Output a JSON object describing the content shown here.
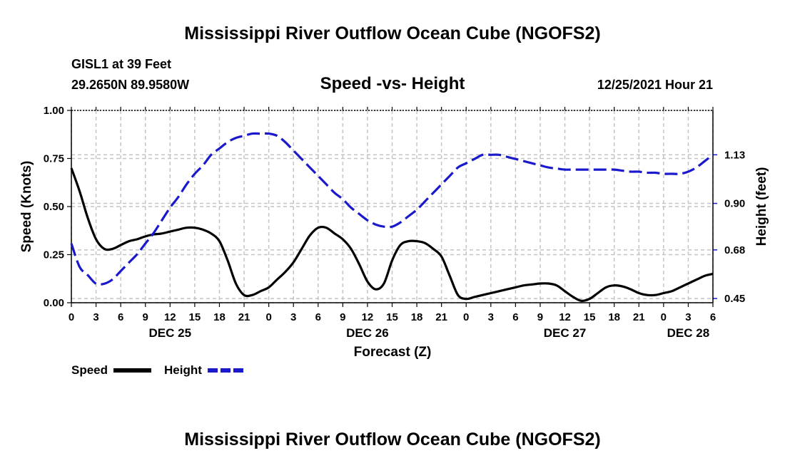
{
  "header": {
    "title": "Mississippi River Outflow Ocean Cube (NGOFS2)",
    "station": "GISL1 at 39 Feet",
    "coords": "29.2650N  89.9580W",
    "chart_title": "Speed -vs- Height",
    "datetime": "12/25/2021 Hour 21"
  },
  "footer": {
    "title": "Mississippi River Outflow Ocean Cube (NGOFS2)"
  },
  "chart_data": {
    "type": "line",
    "title": "Speed -vs- Height",
    "xlabel": "Forecast (Z)",
    "ylabel": "Speed (Knots)",
    "y2label": "Height (feet)",
    "hour_ticks": [
      "0",
      "3",
      "6",
      "9",
      "12",
      "15",
      "18",
      "21",
      "0",
      "3",
      "6",
      "9",
      "12",
      "15",
      "18",
      "21",
      "0",
      "3",
      "6",
      "9",
      "12",
      "15",
      "18",
      "21",
      "0",
      "3",
      "6"
    ],
    "day_labels": [
      {
        "label": "DEC 25",
        "hour": 12
      },
      {
        "label": "DEC 26",
        "hour": 36
      },
      {
        "label": "DEC 27",
        "hour": 60
      },
      {
        "label": "DEC 28",
        "hour": 75
      }
    ],
    "xlim": [
      0,
      78
    ],
    "ylim": [
      0,
      1
    ],
    "y_ticks": [
      "0.00",
      "0.25",
      "0.50",
      "0.75",
      "1.00"
    ],
    "y2lim": [
      0.43,
      1.34
    ],
    "y2_ticks": [
      "0.45",
      "0.68",
      "0.90",
      "1.13"
    ],
    "legend": [
      {
        "name": "Speed",
        "color": "#000000",
        "style": "solid"
      },
      {
        "name": "Height",
        "color": "#1a1acc",
        "style": "dashed"
      }
    ],
    "series": [
      {
        "name": "Speed",
        "axis": "left",
        "color": "#000000",
        "x": [
          0,
          1,
          2,
          3,
          4,
          5,
          6,
          7,
          8,
          9,
          10,
          11,
          12,
          13,
          14,
          15,
          16,
          17,
          18,
          19,
          20,
          21,
          22,
          23,
          24,
          25,
          26,
          27,
          28,
          29,
          30,
          31,
          32,
          33,
          34,
          35,
          36,
          37,
          38,
          39,
          40,
          41,
          42,
          43,
          44,
          45,
          46,
          47,
          48,
          49,
          50,
          51,
          52,
          53,
          54,
          55,
          56,
          57,
          58,
          59,
          60,
          61,
          62,
          63,
          64,
          65,
          66,
          67,
          68,
          69,
          70,
          71,
          72,
          73,
          74,
          75,
          76,
          77,
          78
        ],
        "values": [
          0.7,
          0.58,
          0.44,
          0.33,
          0.28,
          0.28,
          0.3,
          0.32,
          0.33,
          0.345,
          0.355,
          0.36,
          0.37,
          0.38,
          0.39,
          0.39,
          0.38,
          0.36,
          0.32,
          0.22,
          0.1,
          0.04,
          0.04,
          0.06,
          0.08,
          0.12,
          0.16,
          0.21,
          0.28,
          0.35,
          0.39,
          0.39,
          0.36,
          0.33,
          0.28,
          0.2,
          0.11,
          0.07,
          0.1,
          0.22,
          0.3,
          0.32,
          0.32,
          0.31,
          0.28,
          0.24,
          0.14,
          0.04,
          0.02,
          0.03,
          0.04,
          0.05,
          0.06,
          0.07,
          0.08,
          0.09,
          0.095,
          0.1,
          0.1,
          0.09,
          0.06,
          0.03,
          0.01,
          0.02,
          0.05,
          0.08,
          0.09,
          0.085,
          0.07,
          0.05,
          0.04,
          0.04,
          0.05,
          0.06,
          0.08,
          0.1,
          0.12,
          0.14,
          0.15
        ]
      },
      {
        "name": "Height",
        "axis": "right",
        "color": "#1a1acc",
        "x": [
          0,
          1,
          2,
          3,
          4,
          5,
          6,
          7,
          8,
          9,
          10,
          11,
          12,
          13,
          14,
          15,
          16,
          17,
          18,
          19,
          20,
          21,
          22,
          23,
          24,
          25,
          26,
          27,
          28,
          29,
          30,
          31,
          32,
          33,
          34,
          35,
          36,
          37,
          38,
          39,
          40,
          41,
          42,
          43,
          44,
          45,
          46,
          47,
          48,
          49,
          50,
          51,
          52,
          53,
          54,
          55,
          56,
          57,
          58,
          59,
          60,
          61,
          62,
          63,
          64,
          65,
          66,
          67,
          68,
          69,
          70,
          71,
          72,
          73,
          74,
          75,
          76,
          77,
          78
        ],
        "values": [
          0.71,
          0.6,
          0.56,
          0.52,
          0.52,
          0.54,
          0.58,
          0.62,
          0.66,
          0.71,
          0.76,
          0.82,
          0.88,
          0.93,
          0.99,
          1.04,
          1.08,
          1.13,
          1.16,
          1.19,
          1.21,
          1.22,
          1.23,
          1.23,
          1.23,
          1.22,
          1.19,
          1.15,
          1.11,
          1.07,
          1.03,
          0.99,
          0.95,
          0.92,
          0.88,
          0.85,
          0.82,
          0.8,
          0.79,
          0.79,
          0.81,
          0.84,
          0.87,
          0.91,
          0.95,
          0.99,
          1.03,
          1.07,
          1.09,
          1.11,
          1.13,
          1.13,
          1.13,
          1.12,
          1.11,
          1.1,
          1.09,
          1.08,
          1.07,
          1.065,
          1.06,
          1.06,
          1.06,
          1.06,
          1.06,
          1.06,
          1.06,
          1.055,
          1.05,
          1.05,
          1.045,
          1.045,
          1.04,
          1.04,
          1.04,
          1.05,
          1.07,
          1.1,
          1.13
        ]
      }
    ]
  }
}
